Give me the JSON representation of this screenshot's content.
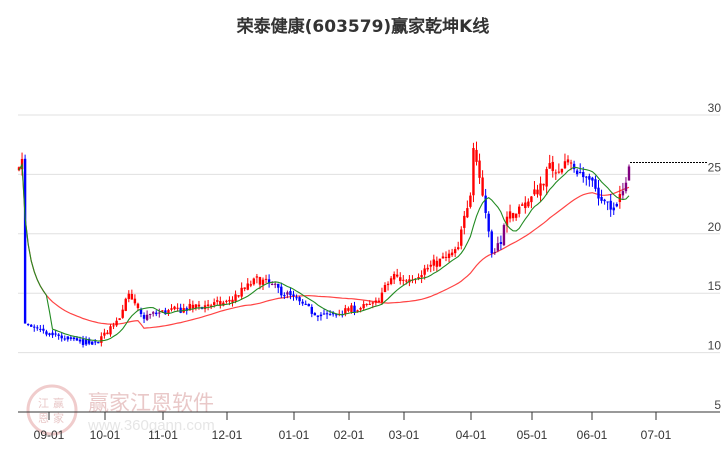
{
  "title": "荣泰健康(603579)赢家乾坤K线",
  "watermark": {
    "brand": "赢家江恩软件",
    "url": "www.360gann.com",
    "seal_chars": [
      "江",
      "赢",
      "恩",
      "家"
    ]
  },
  "colors": {
    "up": "#ff0000",
    "down": "#0000ff",
    "special": "#800080",
    "ma_short": "#228B22",
    "ma_long": "#ff4444",
    "grid": "#e0e0e0",
    "axis": "#333333",
    "last_price_line": "#000000"
  },
  "chart_data": {
    "type": "candlestick",
    "title": "荣泰健康(603579)赢家乾坤K线",
    "xlabel": "",
    "ylabel": "",
    "y_axis_position": "right",
    "ylim": [
      5,
      30
    ],
    "y_ticks": [
      30,
      25,
      20,
      15,
      10,
      5
    ],
    "x_ticks": [
      "09-01",
      "10-01",
      "11-01",
      "12-01",
      "01-01",
      "02-01",
      "03-01",
      "04-01",
      "05-01",
      "06-01",
      "07-01"
    ],
    "grid": true,
    "legend": null,
    "last_price": 26.0,
    "series": [
      {
        "name": "K线",
        "type": "candlestick",
        "approx_path": [
          [
            "08-17",
            12.4
          ],
          [
            "08-25",
            11.8
          ],
          [
            "09-01",
            11.5
          ],
          [
            "09-15",
            11.0
          ],
          [
            "09-25",
            10.7
          ],
          [
            "10-01",
            11.5
          ],
          [
            "10-10",
            13.5
          ],
          [
            "10-12",
            15.0
          ],
          [
            "10-20",
            13.0
          ],
          [
            "11-01",
            13.4
          ],
          [
            "11-15",
            13.8
          ],
          [
            "12-01",
            14.2
          ],
          [
            "12-15",
            16.2
          ],
          [
            "12-25",
            15.2
          ],
          [
            "01-01",
            14.5
          ],
          [
            "01-10",
            13.5
          ],
          [
            "01-20",
            13.0
          ],
          [
            "02-01",
            13.6
          ],
          [
            "02-15",
            14.0
          ],
          [
            "02-25",
            16.5
          ],
          [
            "03-01",
            16.0
          ],
          [
            "03-15",
            17.5
          ],
          [
            "03-25",
            18.5
          ],
          [
            "04-01",
            24.0
          ],
          [
            "04-02",
            28.0
          ],
          [
            "04-08",
            22.0
          ],
          [
            "04-12",
            18.0
          ],
          [
            "04-20",
            21.5
          ],
          [
            "05-01",
            23.0
          ],
          [
            "05-10",
            25.5
          ],
          [
            "05-20",
            26.0
          ],
          [
            "06-01",
            24.0
          ],
          [
            "06-10",
            22.5
          ],
          [
            "06-15",
            23.0
          ],
          [
            "06-19",
            26.0
          ]
        ]
      },
      {
        "name": "短期均线",
        "type": "line",
        "color": "#228B22"
      },
      {
        "name": "长期均线",
        "type": "line",
        "color": "#ff4444"
      }
    ]
  }
}
